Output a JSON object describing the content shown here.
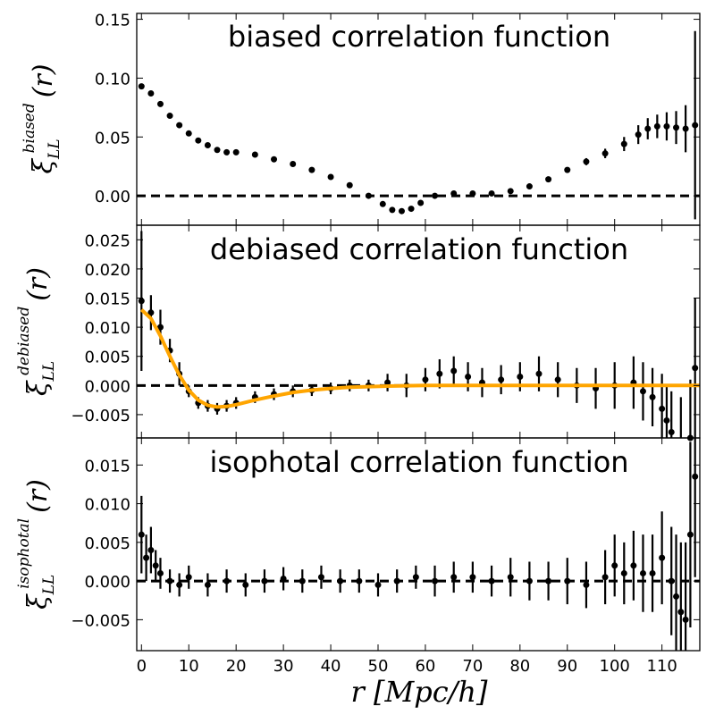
{
  "chart_data": [
    {
      "type": "scatter",
      "panel": "top",
      "title": "biased correlation function",
      "ylabel": {
        "symbol": "ξ",
        "sub": "LL",
        "sup": "biased",
        "arg": "(r)"
      },
      "xlim": [
        -1,
        118
      ],
      "ylim": [
        -0.025,
        0.155
      ],
      "yticks": [
        0.0,
        0.05,
        0.1,
        0.15
      ],
      "ytick_labels": [
        "0.00",
        "0.05",
        "0.10",
        "0.15"
      ],
      "reference_line": 0,
      "series": [
        {
          "name": "biased ξ_LL(r)",
          "x": [
            0,
            2,
            4,
            6,
            8,
            10,
            12,
            14,
            16,
            18,
            20,
            24,
            28,
            32,
            36,
            40,
            44,
            48,
            51,
            53,
            55,
            57,
            59,
            62,
            66,
            70,
            74,
            78,
            82,
            86,
            90,
            94,
            98,
            102,
            105,
            107,
            109,
            111,
            113,
            115,
            117
          ],
          "y": [
            0.093,
            0.087,
            0.078,
            0.068,
            0.06,
            0.053,
            0.047,
            0.043,
            0.039,
            0.037,
            0.037,
            0.035,
            0.031,
            0.027,
            0.022,
            0.016,
            0.009,
            0.0,
            -0.007,
            -0.012,
            -0.013,
            -0.011,
            -0.006,
            0.0,
            0.002,
            0.002,
            0.002,
            0.004,
            0.008,
            0.014,
            0.022,
            0.029,
            0.036,
            0.044,
            0.052,
            0.057,
            0.059,
            0.059,
            0.058,
            0.057,
            0.06
          ],
          "yerr": [
            0.001,
            0.001,
            0.001,
            0.001,
            0.001,
            0.001,
            0.001,
            0.001,
            0.001,
            0.001,
            0.001,
            0.001,
            0.001,
            0.001,
            0.001,
            0.001,
            0.001,
            0.001,
            0.001,
            0.001,
            0.001,
            0.001,
            0.001,
            0.001,
            0.001,
            0.001,
            0.001,
            0.001,
            0.001,
            0.002,
            0.002,
            0.003,
            0.004,
            0.006,
            0.008,
            0.009,
            0.01,
            0.012,
            0.014,
            0.02,
            0.08
          ]
        }
      ]
    },
    {
      "type": "scatter",
      "panel": "middle",
      "title": "debiased correlation function",
      "ylabel": {
        "symbol": "ξ",
        "sub": "LL",
        "sup": "debiased",
        "arg": "(r)"
      },
      "xlim": [
        -1,
        118
      ],
      "ylim": [
        -0.009,
        0.0275
      ],
      "yticks": [
        -0.005,
        0.0,
        0.005,
        0.01,
        0.015,
        0.02,
        0.025
      ],
      "ytick_labels": [
        "−0.005",
        "0.000",
        "0.005",
        "0.010",
        "0.015",
        "0.020",
        "0.025"
      ],
      "reference_line": 0,
      "series": [
        {
          "name": "debiased ξ_LL(r)",
          "x": [
            0,
            2,
            4,
            6,
            8,
            10,
            12,
            14,
            16,
            18,
            20,
            24,
            28,
            32,
            36,
            40,
            44,
            48,
            52,
            56,
            60,
            63,
            66,
            69,
            72,
            76,
            80,
            84,
            88,
            92,
            96,
            100,
            104,
            106,
            108,
            110,
            111,
            112,
            114,
            116,
            117
          ],
          "y": [
            0.0145,
            0.0125,
            0.01,
            0.006,
            0.002,
            -0.001,
            -0.003,
            -0.0035,
            -0.004,
            -0.0035,
            -0.003,
            -0.002,
            -0.0015,
            -0.001,
            -0.0008,
            -0.0005,
            0.0,
            0.0,
            0.0005,
            0.0,
            0.001,
            0.002,
            0.0025,
            0.0015,
            0.0005,
            0.001,
            0.0015,
            0.002,
            0.001,
            0.0,
            -0.0005,
            0.0,
            0.0005,
            -0.001,
            -0.002,
            -0.004,
            -0.006,
            -0.008,
            -0.01,
            -0.009,
            0.003
          ],
          "yerr": [
            0.012,
            0.003,
            0.003,
            0.002,
            0.002,
            0.001,
            0.001,
            0.001,
            0.001,
            0.001,
            0.001,
            0.001,
            0.001,
            0.001,
            0.001,
            0.001,
            0.001,
            0.001,
            0.0015,
            0.002,
            0.002,
            0.0025,
            0.0025,
            0.0025,
            0.0025,
            0.0025,
            0.0025,
            0.003,
            0.003,
            0.003,
            0.0035,
            0.004,
            0.0045,
            0.005,
            0.005,
            0.006,
            0.006,
            0.007,
            0.008,
            0.01,
            0.012
          ]
        },
        {
          "name": "model fit",
          "color": "#ffa500",
          "x": [
            0,
            2,
            4,
            6,
            8,
            10,
            12,
            14,
            16,
            18,
            20,
            24,
            28,
            32,
            36,
            40,
            44,
            48,
            52,
            60,
            70,
            80,
            90,
            100,
            110,
            118
          ],
          "y": [
            0.013,
            0.0115,
            0.0085,
            0.005,
            0.0018,
            -0.0008,
            -0.0025,
            -0.0034,
            -0.0037,
            -0.0036,
            -0.0033,
            -0.0025,
            -0.0018,
            -0.0012,
            -0.0008,
            -0.0005,
            -0.0003,
            -0.0002,
            -0.0001,
            0.0,
            0.0,
            0.0,
            0.0,
            0.0,
            0.0,
            0.0
          ]
        }
      ]
    },
    {
      "type": "scatter",
      "panel": "bottom",
      "title": "isophotal correlation function",
      "ylabel": {
        "symbol": "ξ",
        "sub": "LL",
        "sup": "isophotal",
        "arg": "(r)"
      },
      "xlabel": "r  [Mpc/h]",
      "xlim": [
        -1,
        118
      ],
      "xticks": [
        0,
        10,
        20,
        30,
        40,
        50,
        60,
        70,
        80,
        90,
        100,
        110
      ],
      "xtick_labels": [
        "0",
        "10",
        "20",
        "30",
        "40",
        "50",
        "60",
        "70",
        "80",
        "90",
        "100",
        "110"
      ],
      "ylim": [
        -0.009,
        0.0185
      ],
      "yticks": [
        -0.005,
        0.0,
        0.005,
        0.01,
        0.015
      ],
      "ytick_labels": [
        "−0.005",
        "0.000",
        "0.005",
        "0.010",
        "0.015"
      ],
      "reference_line": 0,
      "series": [
        {
          "name": "isophotal ξ_LL(r)",
          "x": [
            0,
            1,
            2,
            3,
            4,
            6,
            8,
            10,
            14,
            18,
            22,
            26,
            30,
            34,
            38,
            42,
            46,
            50,
            54,
            58,
            62,
            66,
            70,
            74,
            78,
            82,
            86,
            90,
            94,
            98,
            100,
            102,
            104,
            106,
            108,
            110,
            112,
            113,
            114,
            115,
            116,
            117
          ],
          "y": [
            0.006,
            0.003,
            0.004,
            0.002,
            0.001,
            0.0,
            -0.0005,
            0.0005,
            -0.0005,
            0.0,
            -0.0005,
            0.0,
            0.0003,
            0.0,
            0.0005,
            0.0,
            0.0,
            -0.0005,
            0.0,
            0.0005,
            0.0,
            0.0005,
            0.0005,
            0.0,
            0.0005,
            0.0,
            0.0,
            0.0,
            -0.0005,
            0.0005,
            0.002,
            0.001,
            0.002,
            0.001,
            0.001,
            0.003,
            0.0,
            -0.002,
            -0.004,
            -0.005,
            0.006,
            0.0135
          ],
          "yerr": [
            0.005,
            0.003,
            0.003,
            0.002,
            0.002,
            0.0015,
            0.0015,
            0.0015,
            0.0015,
            0.0015,
            0.0015,
            0.0015,
            0.0015,
            0.0015,
            0.0015,
            0.0015,
            0.0015,
            0.0015,
            0.0015,
            0.0015,
            0.002,
            0.002,
            0.002,
            0.002,
            0.0025,
            0.0025,
            0.0025,
            0.003,
            0.003,
            0.0035,
            0.004,
            0.004,
            0.0045,
            0.005,
            0.005,
            0.006,
            0.007,
            0.008,
            0.009,
            0.01,
            0.012,
            0.013
          ]
        }
      ]
    }
  ]
}
